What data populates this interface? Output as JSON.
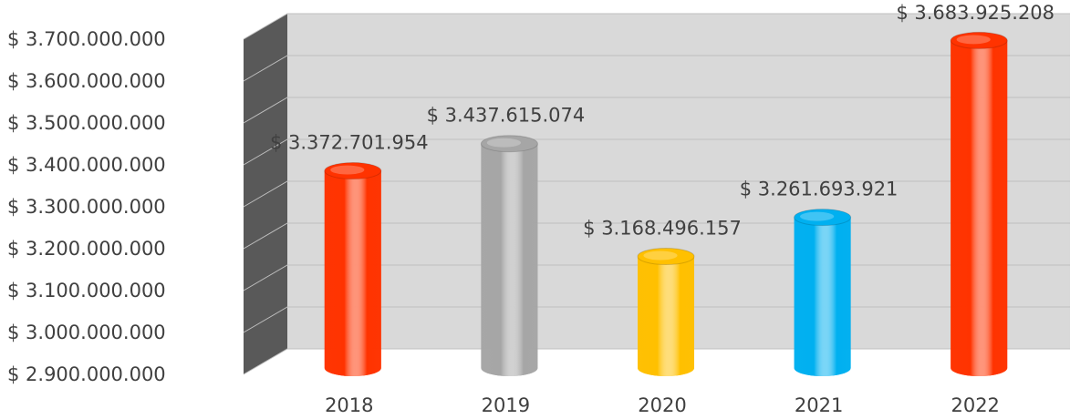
{
  "chart_data": {
    "type": "bar",
    "categories": [
      "2018",
      "2019",
      "2020",
      "2021",
      "2022"
    ],
    "values": [
      3372701954,
      3437615074,
      3168496157,
      3261693921,
      3683925208
    ],
    "data_labels": [
      "$ 3.372.701.954",
      "$ 3.437.615.074",
      "$ 3.168.496.157",
      "$ 3.261.693.921",
      "$ 3.683.925.208"
    ],
    "bar_colors": [
      "#FF3300",
      "#A6A6A6",
      "#FFC000",
      "#00B0F0",
      "#FF3300"
    ],
    "ylim": [
      2900000000,
      3700000000
    ],
    "y_ticks": [
      2900000000,
      3000000000,
      3100000000,
      3200000000,
      3300000000,
      3400000000,
      3500000000,
      3600000000,
      3700000000
    ],
    "y_tick_labels": [
      "$ 2.900.000.000",
      "$ 3.000.000.000",
      "$ 3.100.000.000",
      "$ 3.200.000.000",
      "$ 3.300.000.000",
      "$ 3.400.000.000",
      "$ 3.500.000.000",
      "$ 3.600.000.000",
      "$ 3.700.000.000"
    ],
    "grid": true,
    "style": "3d-cylinder",
    "wall_color": "#D9D9D9",
    "side_wall_color": "#595959"
  }
}
